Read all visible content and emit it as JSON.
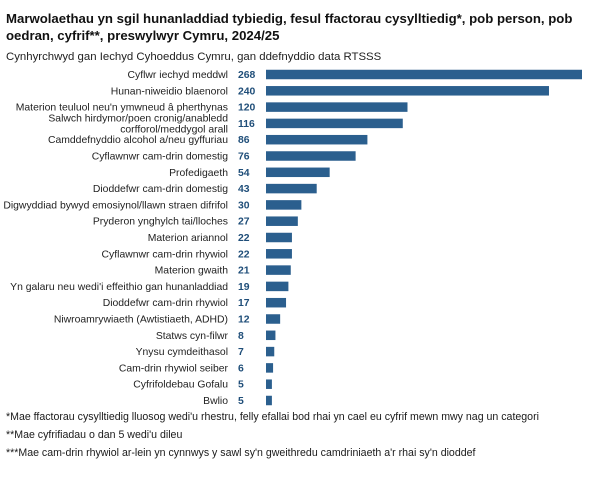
{
  "header": {
    "title": "Marwolaethau yn sgil hunanladdiad tybiedig, fesul ffactorau cysylltiedig*, pob person, pob oedran, cyfrif**, preswylwyr Cymru, 2024/25",
    "subtitle": "Cynhyrchwyd gan Iechyd Cyhoeddus Cymru, gan ddefnyddio data RTSSS"
  },
  "chart_data": {
    "type": "bar",
    "orientation": "horizontal",
    "title": "Marwolaethau yn sgil hunanladdiad tybiedig, fesul ffactorau cysylltiedig*, pob person, pob oedran, cyfrif**, preswylwyr Cymru, 2024/25",
    "xlabel": "",
    "ylabel": "",
    "xlim": [
      0,
      268
    ],
    "grid": false,
    "legend": "none",
    "bar_color": "#2b5f8e",
    "label_color": "#1f4e79",
    "categories": [
      [
        "Cyflwr iechyd meddwl"
      ],
      [
        "Hunan-niweidio blaenorol"
      ],
      [
        "Materion teuluol neu'n ymwneud â pherthynas"
      ],
      [
        "Salwch hirdymor/poen cronig/anabledd",
        "corfforol/meddygol arall"
      ],
      [
        "Camddefnyddio alcohol a/neu gyffuriau"
      ],
      [
        "Cyflawnwr cam-drin domestig"
      ],
      [
        "Profedigaeth"
      ],
      [
        "Dioddefwr cam-drin domestig"
      ],
      [
        "Digwyddiad bywyd emosiynol/llawn straen difrifol"
      ],
      [
        "Pryderon ynghylch tai/lloches"
      ],
      [
        "Materion ariannol"
      ],
      [
        "Cyflawnwr cam-drin rhywiol"
      ],
      [
        "Materion gwaith"
      ],
      [
        "Yn galaru neu wedi'i effeithio gan hunanladdiad"
      ],
      [
        "Dioddefwr cam-drin rhywiol"
      ],
      [
        "Niwroamrywiaeth (Awtistiaeth, ADHD)"
      ],
      [
        "Statws cyn-filwr"
      ],
      [
        "Ynysu cymdeithasol"
      ],
      [
        "Cam-drin rhywiol seiber"
      ],
      [
        "Cyfrifoldebau Gofalu"
      ],
      [
        "Bwlio"
      ]
    ],
    "values": [
      268,
      240,
      120,
      116,
      86,
      76,
      54,
      43,
      30,
      27,
      22,
      22,
      21,
      19,
      17,
      12,
      8,
      7,
      6,
      5,
      5
    ]
  },
  "footnotes": [
    "*Mae ffactorau cysylltiedig lluosog wedi'u rhestru, felly efallai bod rhai yn cael eu cyfrif mewn mwy nag un categori",
    "**Mae cyfrifiadau o dan 5 wedi'u dileu",
    "***Mae cam-drin rhywiol ar-lein yn cynnwys y sawl sy'n gweithredu camdriniaeth a'r rhai sy'n dioddef"
  ]
}
